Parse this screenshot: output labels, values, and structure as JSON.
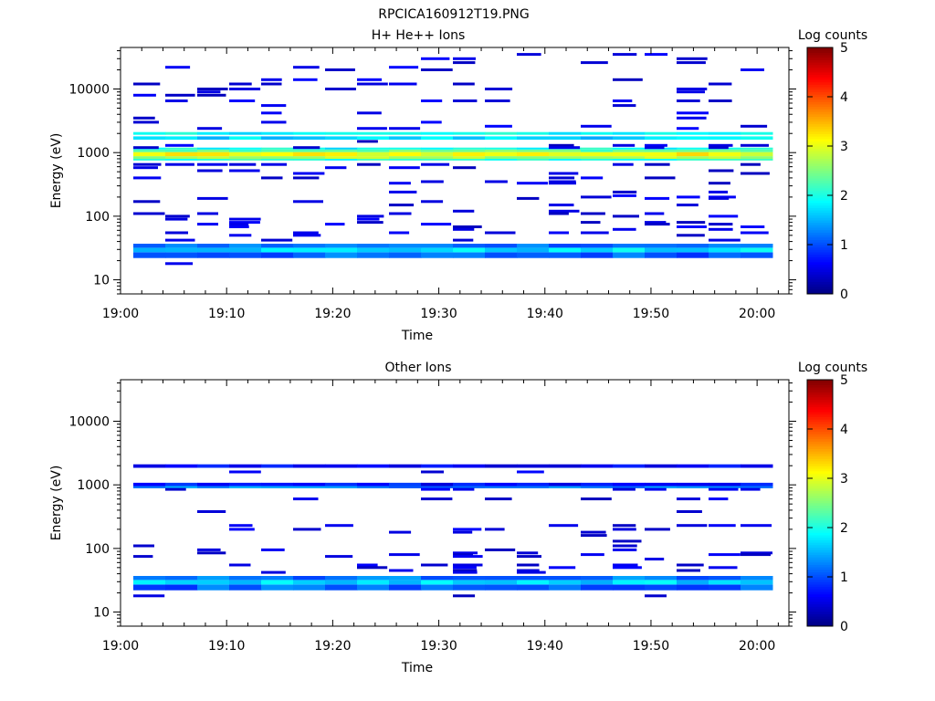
{
  "figure_title": "RPCICA160912T19.PNG",
  "chart_data": [
    {
      "type": "heatmap",
      "title": "H+ He++ Ions",
      "xlabel": "Time",
      "ylabel": "Energy (eV)",
      "y_scale": "log",
      "ylim": [
        6,
        45000
      ],
      "xlim": [
        "19:00",
        "20:03"
      ],
      "x_ticks": [
        "19:00",
        "19:10",
        "19:20",
        "19:30",
        "19:40",
        "19:50",
        "20:00"
      ],
      "y_ticks": [
        "10",
        "100",
        "1000",
        "10000"
      ],
      "colorbar": {
        "label": "Log counts",
        "range": [
          0,
          5
        ],
        "ticks": [
          "0",
          "1",
          "2",
          "3",
          "4",
          "5"
        ],
        "colormap": "jet"
      },
      "background_energy_bands": [
        {
          "energy_low": 750,
          "energy_high": 800,
          "log_counts": 2.0
        },
        {
          "energy_low": 800,
          "energy_high": 880,
          "log_counts": 2.7
        },
        {
          "energy_low": 880,
          "energy_high": 1020,
          "log_counts": 3.1
        },
        {
          "energy_low": 1020,
          "energy_high": 1120,
          "log_counts": 2.4
        },
        {
          "energy_low": 1120,
          "energy_high": 1200,
          "log_counts": 1.9
        },
        {
          "energy_low": 1600,
          "energy_high": 1800,
          "log_counts": 1.7
        },
        {
          "energy_low": 1900,
          "energy_high": 2100,
          "log_counts": 1.9
        },
        {
          "energy_low": 22,
          "energy_high": 27,
          "log_counts": 1.1
        },
        {
          "energy_low": 27,
          "energy_high": 32,
          "log_counts": 1.7
        },
        {
          "energy_low": 32,
          "energy_high": 37,
          "log_counts": 1.2
        }
      ],
      "sparse_energies_eV": [
        35000,
        30000,
        26000,
        22000,
        20000,
        14000,
        12000,
        10000,
        9000,
        8000,
        6500,
        5500,
        4200,
        3500,
        3000,
        2600,
        2400,
        1500,
        1300,
        1200,
        650,
        580,
        520,
        470,
        400,
        350,
        330,
        240,
        210,
        200,
        190,
        170,
        150,
        120,
        110,
        100,
        90,
        80,
        75,
        68,
        62,
        55,
        50,
        45,
        42,
        18
      ],
      "sparse_log_counts": 0.3
    },
    {
      "type": "heatmap",
      "title": "Other Ions",
      "xlabel": "Time",
      "ylabel": "Energy (eV)",
      "y_scale": "log",
      "ylim": [
        6,
        45000
      ],
      "xlim": [
        "19:00",
        "20:03"
      ],
      "x_ticks": [
        "19:00",
        "19:10",
        "19:20",
        "19:30",
        "19:40",
        "19:50",
        "20:00"
      ],
      "y_ticks": [
        "10",
        "100",
        "1000",
        "10000"
      ],
      "colorbar": {
        "label": "Log counts",
        "range": [
          0,
          5
        ],
        "ticks": [
          "0",
          "1",
          "2",
          "3",
          "4",
          "5"
        ],
        "colormap": "jet"
      },
      "background_energy_bands": [
        {
          "energy_low": 880,
          "energy_high": 960,
          "log_counts": 1.3
        },
        {
          "energy_low": 960,
          "energy_high": 1080,
          "log_counts": 0.7
        },
        {
          "energy_low": 1850,
          "energy_high": 2100,
          "log_counts": 0.6
        },
        {
          "energy_low": 22,
          "energy_high": 27,
          "log_counts": 1.1
        },
        {
          "energy_low": 27,
          "energy_high": 32,
          "log_counts": 1.7
        },
        {
          "energy_low": 32,
          "energy_high": 37,
          "log_counts": 1.2
        }
      ],
      "sparse_energies_eV": [
        1600,
        850,
        600,
        380,
        230,
        200,
        180,
        160,
        130,
        110,
        95,
        85,
        80,
        75,
        68,
        55,
        50,
        45,
        42,
        18
      ],
      "sparse_log_counts": 0.3
    }
  ]
}
